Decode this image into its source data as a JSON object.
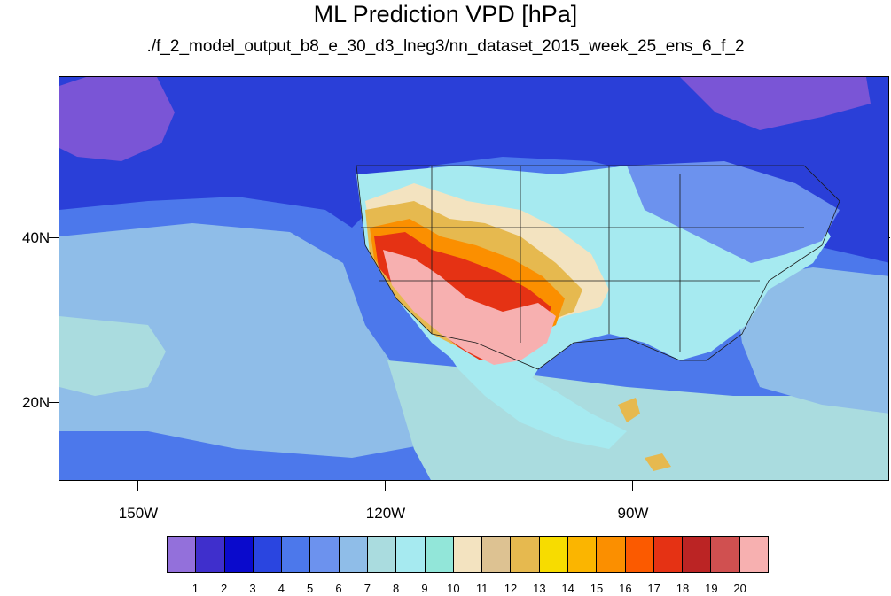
{
  "title": "ML Prediction VPD [hPa]",
  "subtitle": "./f_2_model_output_b8_e_30_d3_lneg3/nn_dataset_2015_week_25_ens_6_f_2",
  "axes": {
    "lat_labels": [
      "40N",
      "20N"
    ],
    "lon_labels": [
      "150W",
      "120W",
      "90W"
    ]
  },
  "legend": {
    "labels": [
      "1",
      "2",
      "3",
      "4",
      "5",
      "6",
      "7",
      "8",
      "9",
      "10",
      "11",
      "12",
      "13",
      "14",
      "15",
      "16",
      "17",
      "18",
      "19",
      "20"
    ],
    "colors": [
      "#9370db",
      "#3f2fcc",
      "#0a0acc",
      "#2a45e0",
      "#4c78eb",
      "#6c92ee",
      "#8fbde8",
      "#aadcdf",
      "#a6eaf0",
      "#92e6d9",
      "#f3e3c0",
      "#ddc292",
      "#e6b94f",
      "#f7dc00",
      "#fbb500",
      "#fb8f00",
      "#fb5a00",
      "#e53214",
      "#bb2424",
      "#d05050",
      "#f7b0b0"
    ]
  },
  "map_regions": {
    "ocean_deep": "#2a3fd8",
    "ocean_mid": "#4c78eb",
    "ocean_light": "#8fbde8",
    "ocean_pale": "#aadcdf",
    "purple": "#7a55d6",
    "land_east": "#a6eaf0",
    "land_cool": "#6c92ee",
    "tan": "#f3e3c0",
    "gold": "#e6b94f",
    "orange": "#fb8f00",
    "red": "#e53214",
    "pink": "#f7b0b0"
  }
}
